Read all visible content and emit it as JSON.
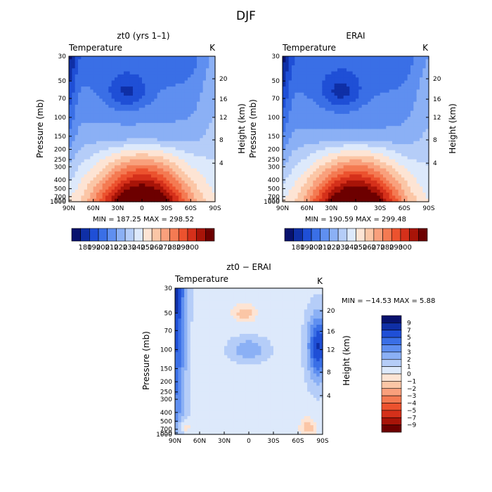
{
  "figure": {
    "title": "DJF"
  },
  "palettes": {
    "abs": [
      "#08126e",
      "#0f2fa6",
      "#1f4fd6",
      "#3a6fe6",
      "#5f8ff0",
      "#8bb0f5",
      "#b5cdf8",
      "#dde9fb",
      "#fde4d4",
      "#fbc6a6",
      "#f9a07c",
      "#f47a52",
      "#ec522e",
      "#d5301a",
      "#a81408",
      "#6d0000"
    ],
    "diff": [
      "#08126e",
      "#0f2fa6",
      "#1f4fd6",
      "#3a6fe6",
      "#5f8ff0",
      "#8bb0f5",
      "#b5cdf8",
      "#dde9fb",
      "#fde4d4",
      "#fbc6a6",
      "#f9a07c",
      "#f47a52",
      "#ec522e",
      "#d5301a",
      "#a81408",
      "#6d0000"
    ]
  },
  "chart_data": [
    {
      "type": "heatmap",
      "title": "zt0 (yrs 1–1)",
      "left_label": "Temperature",
      "right_label": "K",
      "ylabel": "Pressure (mb)",
      "ylabel_right": "Height (km)",
      "x_ticks": [
        "90N",
        "60N",
        "30N",
        "0",
        "30S",
        "60S",
        "90S"
      ],
      "y_ticks": [
        "30",
        "50",
        "70",
        "100",
        "150",
        "200",
        "250",
        "300",
        "400",
        "500",
        "700",
        "850",
        "1000"
      ],
      "y_right_ticks": [
        "20",
        "16",
        "12",
        "8",
        "4"
      ],
      "stats": "MIN = 187.25   MAX = 298.52",
      "colorbar_labels": [
        "180",
        "190",
        "200",
        "210",
        "220",
        "230",
        "240",
        "250",
        "260",
        "270",
        "280",
        "290",
        "300"
      ]
    },
    {
      "type": "heatmap",
      "title": "ERAI",
      "left_label": "Temperature",
      "right_label": "K",
      "ylabel": "Pressure (mb)",
      "ylabel_right": "Height (km)",
      "x_ticks": [
        "90N",
        "60N",
        "30N",
        "0",
        "30S",
        "60S",
        "90S"
      ],
      "y_ticks": [
        "30",
        "50",
        "70",
        "100",
        "150",
        "200",
        "250",
        "300",
        "400",
        "500",
        "700",
        "850",
        "1000"
      ],
      "y_right_ticks": [
        "20",
        "16",
        "12",
        "8",
        "4"
      ],
      "stats": "MIN = 190.59   MAX = 299.48",
      "colorbar_labels": [
        "180",
        "190",
        "200",
        "210",
        "220",
        "230",
        "240",
        "250",
        "260",
        "270",
        "280",
        "290",
        "300"
      ]
    },
    {
      "type": "heatmap",
      "title": "zt0 − ERAI",
      "left_label": "Temperature",
      "right_label": "K",
      "ylabel": "Pressure (mb)",
      "ylabel_right": "Height (km)",
      "x_ticks": [
        "90N",
        "60N",
        "30N",
        "0",
        "30S",
        "60S",
        "90S"
      ],
      "y_ticks": [
        "30",
        "50",
        "70",
        "100",
        "150",
        "200",
        "250",
        "300",
        "400",
        "500",
        "700",
        "850",
        "1000"
      ],
      "y_right_ticks": [
        "20",
        "16",
        "12",
        "8",
        "4"
      ],
      "stats": "MIN = −14.53   MAX =    5.88",
      "colorbar_labels": [
        "9",
        "7",
        "5",
        "4",
        "3",
        "2",
        "1",
        "0",
        "−1",
        "−2",
        "−3",
        "−4",
        "−5",
        "−7",
        "−9"
      ]
    }
  ]
}
